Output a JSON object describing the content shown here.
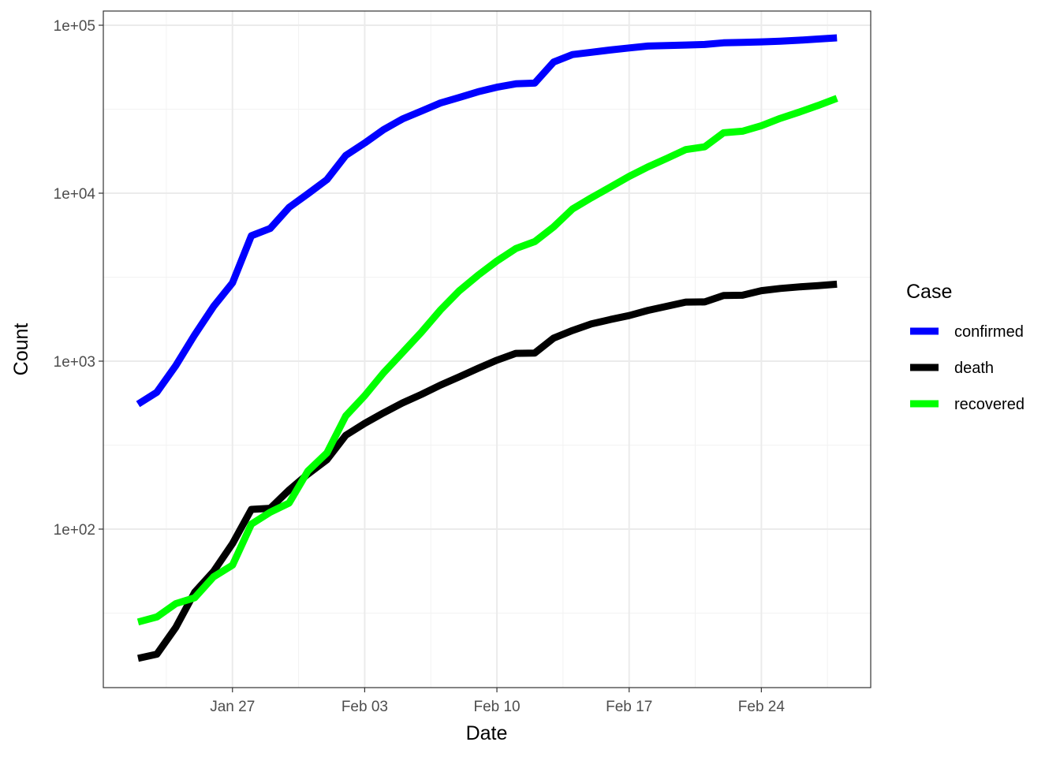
{
  "chart_data": {
    "type": "line",
    "x_start": "2020-01-22",
    "x": [
      "2020-01-22",
      "2020-01-23",
      "2020-01-24",
      "2020-01-25",
      "2020-01-26",
      "2020-01-27",
      "2020-01-28",
      "2020-01-29",
      "2020-01-30",
      "2020-01-31",
      "2020-02-01",
      "2020-02-02",
      "2020-02-03",
      "2020-02-04",
      "2020-02-05",
      "2020-02-06",
      "2020-02-07",
      "2020-02-08",
      "2020-02-09",
      "2020-02-10",
      "2020-02-11",
      "2020-02-12",
      "2020-02-13",
      "2020-02-14",
      "2020-02-15",
      "2020-02-16",
      "2020-02-17",
      "2020-02-18",
      "2020-02-19",
      "2020-02-20",
      "2020-02-21",
      "2020-02-22",
      "2020-02-23",
      "2020-02-24",
      "2020-02-25",
      "2020-02-26",
      "2020-02-27",
      "2020-02-28"
    ],
    "xlabel": "Date",
    "ylabel": "Count",
    "y_scale": "log10",
    "ylim": [
      14,
      110000
    ],
    "x_ticks": [
      "Jan 27",
      "Feb 03",
      "Feb 10",
      "Feb 17",
      "Feb 24"
    ],
    "y_ticks": [
      "1e+02",
      "1e+03",
      "1e+04",
      "1e+05"
    ],
    "grid": true,
    "legend": {
      "title": "Case",
      "position": "right"
    },
    "series": [
      {
        "name": "confirmed",
        "color": "#0000FF",
        "values": [
          555,
          653,
          941,
          1434,
          2118,
          2927,
          5578,
          6166,
          8234,
          9927,
          12038,
          16787,
          19887,
          23898,
          27643,
          30802,
          34395,
          37129,
          40159,
          42763,
          44803,
          45222,
          60370,
          66887,
          69032,
          71226,
          73260,
          75138,
          75641,
          76199,
          76843,
          78599,
          78985,
          79570,
          80415,
          81397,
          82756,
          84124
        ]
      },
      {
        "name": "death",
        "color": "#000000",
        "values": [
          17,
          18,
          26,
          42,
          56,
          82,
          131,
          133,
          171,
          213,
          259,
          362,
          426,
          492,
          564,
          634,
          719,
          806,
          906,
          1013,
          1113,
          1118,
          1371,
          1523,
          1666,
          1770,
          1868,
          2007,
          2122,
          2247,
          2251,
          2458,
          2469,
          2629,
          2708,
          2770,
          2814,
          2872
        ]
      },
      {
        "name": "recovered",
        "color": "#00FF00",
        "values": [
          28,
          30,
          36,
          39,
          52,
          61,
          107,
          126,
          143,
          222,
          284,
          472,
          623,
          852,
          1124,
          1487,
          2011,
          2616,
          3244,
          3946,
          4683,
          5150,
          6295,
          8058,
          9395,
          10865,
          12583,
          14352,
          16121,
          18177,
          18890,
          22886,
          23394,
          25227,
          27905,
          30384,
          33277,
          36711
        ]
      }
    ]
  }
}
